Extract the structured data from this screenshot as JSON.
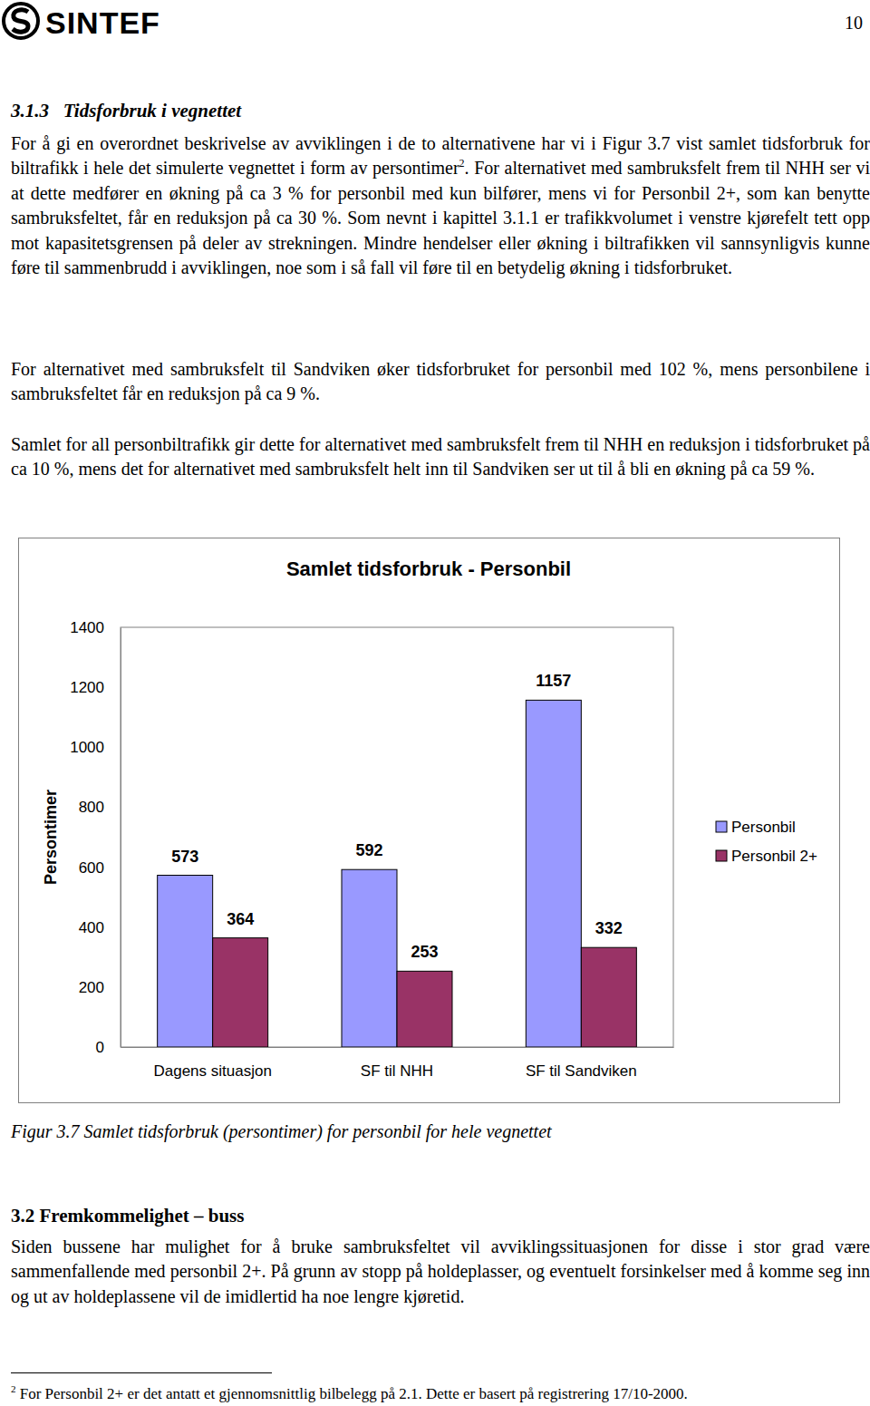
{
  "header": {
    "logo": "SINTEF",
    "page_number": "10"
  },
  "section": {
    "heading": "3.1.3   Tidsforbruk i vegnettet",
    "paragraphs": [
      {
        "before": "For å gi en overordnet beskrivelse av avviklingen i de to alternativene har vi i Figur 3.7 vist samlet tidsforbruk for biltrafikk i hele det simulerte vegnettet i form av persontimer",
        "footnote_ref": "2",
        "after": ". For alternativet med sambruksfelt frem til NHH ser vi at dette medfører en økning på ca 3 % for personbil med kun bilfører, mens vi for Personbil 2+, som kan benytte sambruksfeltet, får en reduksjon på ca 30 %. Som nevnt i kapittel 3.1.1 er trafikkvolumet i venstre kjørefelt tett opp mot kapasitetsgrensen på deler av strekningen. Mindre hendelser eller økning i biltrafikken vil sannsynligvis kunne føre til sammenbrudd i avviklingen, noe som i så fall vil føre til en betydelig økning i tidsforbruket."
      },
      {
        "before": "For alternativet med sambruksfelt til Sandviken øker tidsforbruket for personbil med 102 %, mens personbilene i sambruksfeltet får en reduksjon på ca 9 %."
      },
      {
        "before": "Samlet for all personbiltrafikk gir dette for alternativet med sambruksfelt frem til NHH en reduksjon i tidsforbruket på ca 10 %, mens det for alternativet med sambruksfelt helt inn til Sandviken ser ut til å bli en økning på ca 59 %."
      }
    ]
  },
  "chart_data": {
    "type": "bar",
    "title": "Samlet tidsforbruk - Personbil",
    "y_label": "Persontimer",
    "categories": [
      "Dagens situasjon",
      "SF til NHH",
      "SF til Sandviken"
    ],
    "series": [
      {
        "name": "Personbil",
        "color": "#9999ff",
        "values": [
          573,
          592,
          1157
        ]
      },
      {
        "name": "Personbil 2+",
        "color": "#993366",
        "values": [
          364,
          253,
          332
        ]
      }
    ],
    "ylim": [
      0,
      1400
    ],
    "yticks": [
      0,
      200,
      400,
      600,
      800,
      1000,
      1200,
      1400
    ],
    "grid": false,
    "legend": "right",
    "data_labels": true
  },
  "caption": "Figur 3.7 Samlet tidsforbruk (persontimer) for personbil for hele vegnettet",
  "section2": {
    "heading": "3.2 Fremkommelighet – buss",
    "paragraph": "Siden bussene har mulighet for å bruke sambruksfeltet vil avviklingssituasjonen for disse i stor grad være sammenfallende med personbil 2+. På grunn av stopp på holdeplasser, og eventuelt forsinkelser med å komme seg inn og ut av holdeplassene vil de imidlertid ha noe lengre kjøretid."
  },
  "footnote": {
    "number": "2",
    "text": "For Personbil 2+ er det antatt et gjennomsnittlig bilbelegg på 2.1. Dette er basert på registrering 17/10-2000."
  }
}
